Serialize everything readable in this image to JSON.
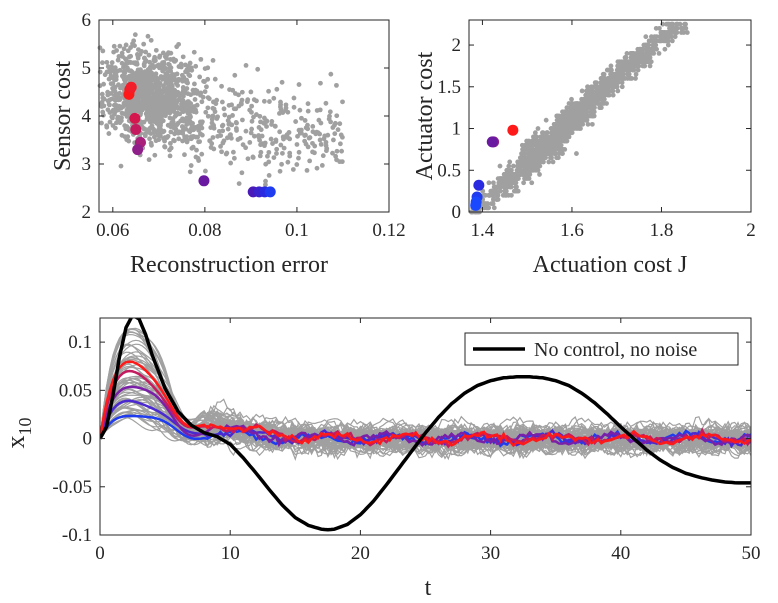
{
  "chart_data": [
    {
      "type": "scatter",
      "xlabel": "Reconstruction error",
      "ylabel": "Sensor cost",
      "xlim": [
        0.057,
        0.12
      ],
      "ylim": [
        2,
        6
      ],
      "xticks": [
        0.06,
        0.08,
        0.1,
        0.12
      ],
      "xtick_labels": [
        "0.06",
        "0.08",
        "0.1",
        "0.12"
      ],
      "yticks": [
        2,
        3,
        4,
        5,
        6
      ],
      "ytick_labels": [
        "2",
        "3",
        "4",
        "5",
        "6"
      ],
      "cloud_color": "#a0a0a0",
      "highlighted": [
        {
          "x": 0.0635,
          "y": 4.45,
          "color": "#ff1a1a"
        },
        {
          "x": 0.0637,
          "y": 4.55,
          "color": "#ff1a1a"
        },
        {
          "x": 0.064,
          "y": 4.6,
          "color": "#f21e2a"
        },
        {
          "x": 0.0648,
          "y": 3.95,
          "color": "#d4184e"
        },
        {
          "x": 0.065,
          "y": 3.72,
          "color": "#c41a5e"
        },
        {
          "x": 0.066,
          "y": 3.45,
          "color": "#a8207a"
        },
        {
          "x": 0.0654,
          "y": 3.3,
          "color": "#8f208a"
        },
        {
          "x": 0.0798,
          "y": 2.65,
          "color": "#6a1aa0"
        },
        {
          "x": 0.0905,
          "y": 2.42,
          "color": "#4a1ab8"
        },
        {
          "x": 0.0918,
          "y": 2.42,
          "color": "#3a22cc"
        },
        {
          "x": 0.093,
          "y": 2.42,
          "color": "#2a2ae0"
        },
        {
          "x": 0.0942,
          "y": 2.42,
          "color": "#1f3cf0"
        }
      ]
    },
    {
      "type": "scatter",
      "xlabel": "Actuation cost J",
      "ylabel": "Actuator cost",
      "xlim": [
        1.37,
        2
      ],
      "ylim": [
        0,
        2.3
      ],
      "xticks": [
        1.4,
        1.6,
        1.8,
        2
      ],
      "xtick_labels": [
        "1.4",
        "1.6",
        "1.8",
        "2"
      ],
      "yticks": [
        0,
        0.5,
        1,
        1.5,
        2
      ],
      "ytick_labels": [
        "0",
        "0.5",
        "1",
        "1.5",
        "2"
      ],
      "cloud_color": "#a0a0a0",
      "highlighted": [
        {
          "x": 1.468,
          "y": 0.98,
          "color": "#ff1a1a"
        },
        {
          "x": 1.425,
          "y": 0.84,
          "color": "#8f208a"
        },
        {
          "x": 1.422,
          "y": 0.84,
          "color": "#6a1aa0"
        },
        {
          "x": 1.392,
          "y": 0.32,
          "color": "#2a2ae0"
        },
        {
          "x": 1.388,
          "y": 0.18,
          "color": "#1f3cf0"
        },
        {
          "x": 1.386,
          "y": 0.12,
          "color": "#1a48ff"
        },
        {
          "x": 1.385,
          "y": 0.08,
          "color": "#1a48ff"
        }
      ]
    },
    {
      "type": "line",
      "xlabel": "t",
      "ylabel": "x",
      "ylabel_subscript": "10",
      "xlim": [
        0,
        50
      ],
      "ylim": [
        -0.1,
        0.125
      ],
      "xticks": [
        0,
        10,
        20,
        30,
        40,
        50
      ],
      "xtick_labels": [
        "0",
        "10",
        "20",
        "30",
        "40",
        "50"
      ],
      "yticks": [
        -0.1,
        -0.05,
        0,
        0.05,
        0.1
      ],
      "ytick_labels": [
        "-0.1",
        "-0.05",
        "0",
        "0.05",
        "0.1"
      ],
      "legend": {
        "label": "No control, no noise",
        "color": "#000000",
        "placement": "top-right"
      },
      "reference": {
        "x": [
          0,
          0.5,
          1,
          1.5,
          2,
          2.5,
          3,
          3.5,
          4,
          5,
          6,
          7,
          8,
          9,
          10,
          11,
          12,
          13,
          14,
          15,
          16,
          17,
          17.5,
          18,
          19,
          20,
          21,
          22,
          23,
          24,
          25,
          26,
          27,
          28,
          29,
          30,
          31,
          32,
          33,
          34,
          35,
          36,
          37,
          38,
          39,
          40,
          41,
          42,
          43,
          44,
          45,
          46,
          47,
          48,
          49,
          50
        ],
        "y": [
          0,
          0.012,
          0.045,
          0.085,
          0.115,
          0.128,
          0.124,
          0.108,
          0.087,
          0.052,
          0.028,
          0.014,
          0.006,
          0.002,
          -0.006,
          -0.02,
          -0.036,
          -0.053,
          -0.069,
          -0.082,
          -0.09,
          -0.094,
          -0.0945,
          -0.094,
          -0.089,
          -0.079,
          -0.065,
          -0.048,
          -0.03,
          -0.012,
          0.006,
          0.022,
          0.036,
          0.047,
          0.055,
          0.06,
          0.063,
          0.064,
          0.064,
          0.063,
          0.06,
          0.055,
          0.047,
          0.037,
          0.025,
          0.012,
          0.0,
          -0.012,
          -0.022,
          -0.03,
          -0.036,
          -0.04,
          -0.043,
          -0.045,
          -0.046,
          -0.046
        ]
      },
      "controlled_runs": [
        {
          "color": "#1f3cf0",
          "peak": 0.025
        },
        {
          "color": "#4a2ad0",
          "peak": 0.04
        },
        {
          "color": "#7a20a8",
          "peak": 0.055
        },
        {
          "color": "#c41a5e",
          "peak": 0.07
        },
        {
          "color": "#ff1a1a",
          "peak": 0.08
        }
      ],
      "ensemble_color": "#a0a0a0"
    }
  ]
}
